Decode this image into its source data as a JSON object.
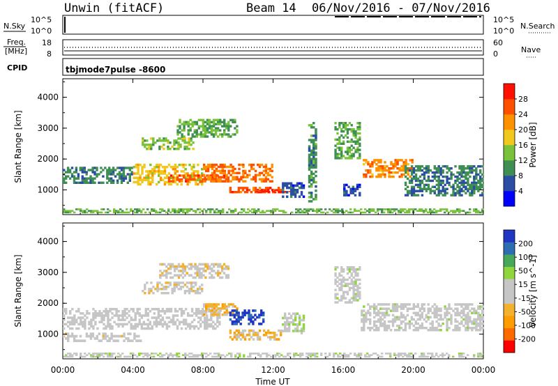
{
  "header": {
    "station": "Unwin (fitACF)",
    "beam": "Beam 14",
    "date_range": "06/Nov/2016 - 07/Nov/2016"
  },
  "noise_panel": {
    "left_label": "N.Sky",
    "right_label": "N.Search",
    "ytick_top": "10^5",
    "ytick_bottom": "10^0"
  },
  "freq_panel": {
    "left_label_top": "Freq.",
    "left_label_bottom": "[MHz]",
    "right_label": "Nave",
    "ytick_left_top": "18",
    "ytick_left_bottom": "8",
    "ytick_right_top": "60",
    "ytick_right_bottom": "0"
  },
  "cpid": {
    "label": "CPID",
    "value": "tbjmode7pulse -8600"
  },
  "xaxis": {
    "label": "Time UT",
    "ticks": [
      "00:00",
      "04:00",
      "08:00",
      "12:00",
      "16:00",
      "20:00",
      "00:00"
    ]
  },
  "colors": {
    "power": [
      "#0000ff",
      "#2b4ea4",
      "#3f8f55",
      "#78c33a",
      "#f0c81e",
      "#ff9000",
      "#ff5000",
      "#ff1000"
    ],
    "velocity": [
      "#ff0000",
      "#ff6a00",
      "#ff9d00",
      "#f3b12e",
      "#c6c6c6",
      "#c6c6c6",
      "#8ed63c",
      "#48a85a",
      "#2f6db3",
      "#1f35c4"
    ]
  },
  "chart_data": [
    {
      "type": "heatmap",
      "name": "power-panel",
      "ylabel": "Slant Range [km]",
      "yticks": [
        "1000",
        "2000",
        "3000",
        "4000"
      ],
      "ylim": [
        200,
        4600
      ],
      "xlim": [
        0,
        24
      ],
      "colorbar": {
        "label": "Power [dB]",
        "ticks": [
          "4",
          "8",
          "12",
          "16",
          "20",
          "24",
          "28"
        ],
        "range": [
          0,
          32
        ]
      },
      "regions": [
        {
          "t": [
            0.0,
            4.0
          ],
          "r": [
            1200,
            1750
          ],
          "v": 9
        },
        {
          "t": [
            4.0,
            8.0
          ],
          "r": [
            1150,
            1850
          ],
          "v": 18
        },
        {
          "t": [
            6.0,
            9.5
          ],
          "r": [
            1250,
            1500
          ],
          "v": 26
        },
        {
          "t": [
            8.0,
            12.0
          ],
          "r": [
            1250,
            1850
          ],
          "v": 24
        },
        {
          "t": [
            9.5,
            12.5
          ],
          "r": [
            900,
            1100
          ],
          "v": 26
        },
        {
          "t": [
            11.0,
            13.0
          ],
          "r": [
            900,
            1000
          ],
          "v": 29
        },
        {
          "t": [
            12.5,
            13.8
          ],
          "r": [
            750,
            1250
          ],
          "v": 6
        },
        {
          "t": [
            4.5,
            7.5
          ],
          "r": [
            2300,
            2700
          ],
          "v": 14
        },
        {
          "t": [
            6.5,
            10.0
          ],
          "r": [
            2700,
            3300
          ],
          "v": 12
        },
        {
          "t": [
            14.0,
            14.5
          ],
          "r": [
            600,
            3200
          ],
          "v": 10
        },
        {
          "t": [
            15.5,
            17.0
          ],
          "r": [
            2000,
            3200
          ],
          "v": 12
        },
        {
          "t": [
            16.0,
            17.0
          ],
          "r": [
            800,
            1200
          ],
          "v": 6
        },
        {
          "t": [
            17.0,
            20.0
          ],
          "r": [
            1400,
            2000
          ],
          "v": 22
        },
        {
          "t": [
            19.5,
            24.0
          ],
          "r": [
            800,
            1800
          ],
          "v": 9
        },
        {
          "t": [
            0.0,
            24.0
          ],
          "r": [
            250,
            400
          ],
          "v": 13
        }
      ]
    },
    {
      "type": "heatmap",
      "name": "velocity-panel",
      "ylabel": "Slant Range [km]",
      "yticks": [
        "1000",
        "2000",
        "3000",
        "4000"
      ],
      "ylim": [
        200,
        4600
      ],
      "xlim": [
        0,
        24
      ],
      "colorbar": {
        "label": "Velocity [m s^-1]",
        "ticks": [
          "-200",
          "-100",
          "-50",
          "-15",
          "15",
          "50",
          "100",
          "200"
        ],
        "range": [
          -250,
          250
        ]
      },
      "regions": [
        {
          "t": [
            0.0,
            9.0
          ],
          "r": [
            1150,
            1850
          ],
          "v": 0
        },
        {
          "t": [
            0.0,
            4.5
          ],
          "r": [
            750,
            1050
          ],
          "v": -10
        },
        {
          "t": [
            4.5,
            8.0
          ],
          "r": [
            2300,
            2700
          ],
          "v": -30
        },
        {
          "t": [
            5.5,
            9.5
          ],
          "r": [
            2800,
            3300
          ],
          "v": -25
        },
        {
          "t": [
            8.0,
            10.0
          ],
          "r": [
            1600,
            2000
          ],
          "v": -80
        },
        {
          "t": [
            9.5,
            11.5
          ],
          "r": [
            1300,
            1800
          ],
          "v": 210
        },
        {
          "t": [
            9.5,
            12.5
          ],
          "r": [
            800,
            1150
          ],
          "v": -70
        },
        {
          "t": [
            12.5,
            13.8
          ],
          "r": [
            1000,
            1700
          ],
          "v": 40
        },
        {
          "t": [
            15.5,
            17.0
          ],
          "r": [
            2000,
            3200
          ],
          "v": 20
        },
        {
          "t": [
            17.0,
            24.0
          ],
          "r": [
            1100,
            2000
          ],
          "v": 10
        },
        {
          "t": [
            0.0,
            24.0
          ],
          "r": [
            250,
            400
          ],
          "v": 20
        }
      ]
    }
  ]
}
